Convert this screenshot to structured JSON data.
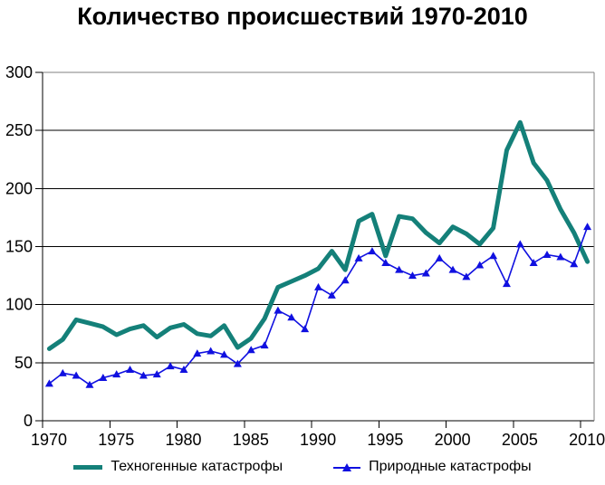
{
  "title": "Количество происшествий 1970-2010",
  "colors": {
    "tech_series": "#148079",
    "nature_series": "#1010E0",
    "gridline": "#000000",
    "axis": "#000000",
    "plot_border": "#808080",
    "background": "#ffffff",
    "text": "#000000"
  },
  "legend": {
    "items": [
      {
        "label": "Техногенные катастрофы",
        "series": "tech",
        "marker": "line"
      },
      {
        "label": "Природные катастрофы",
        "series": "nature",
        "marker": "triangle-line"
      }
    ]
  },
  "chart_data": {
    "type": "line",
    "title": "Количество происшествий 1970-2010",
    "xlabel": "",
    "ylabel": "",
    "ylim": [
      0,
      300
    ],
    "y_ticks": [
      0,
      50,
      100,
      150,
      200,
      250,
      300
    ],
    "x_tick_interval": 5,
    "x_tick_labels": [
      "1970",
      "1975",
      "1980",
      "1985",
      "1990",
      "1995",
      "2000",
      "2005",
      "2010"
    ],
    "grid": "horizontal",
    "legend_position": "bottom",
    "x": [
      1970,
      1971,
      1972,
      1973,
      1974,
      1975,
      1976,
      1977,
      1978,
      1979,
      1980,
      1981,
      1982,
      1983,
      1984,
      1985,
      1986,
      1987,
      1988,
      1989,
      1990,
      1991,
      1992,
      1993,
      1994,
      1995,
      1996,
      1997,
      1998,
      1999,
      2000,
      2001,
      2002,
      2003,
      2004,
      2005,
      2006,
      2007,
      2008,
      2009,
      2010
    ],
    "series": [
      {
        "name": "Техногенные катастрофы",
        "color": "#148079",
        "marker": "none",
        "line_width": 5,
        "values": [
          62,
          70,
          87,
          84,
          81,
          74,
          79,
          82,
          72,
          80,
          83,
          75,
          73,
          82,
          63,
          71,
          88,
          115,
          120,
          125,
          131,
          146,
          130,
          172,
          178,
          142,
          176,
          174,
          162,
          153,
          167,
          161,
          152,
          166,
          233,
          257,
          222,
          207,
          182,
          162,
          137
        ]
      },
      {
        "name": "Природные катастрофы",
        "color": "#1010E0",
        "marker": "triangle",
        "line_width": 1.6,
        "values": [
          32,
          41,
          39,
          31,
          37,
          40,
          44,
          39,
          40,
          47,
          44,
          58,
          60,
          57,
          49,
          61,
          65,
          95,
          89,
          79,
          115,
          108,
          121,
          140,
          146,
          136,
          130,
          125,
          127,
          140,
          130,
          124,
          134,
          142,
          118,
          152,
          136,
          143,
          141,
          135,
          167
        ]
      }
    ]
  }
}
